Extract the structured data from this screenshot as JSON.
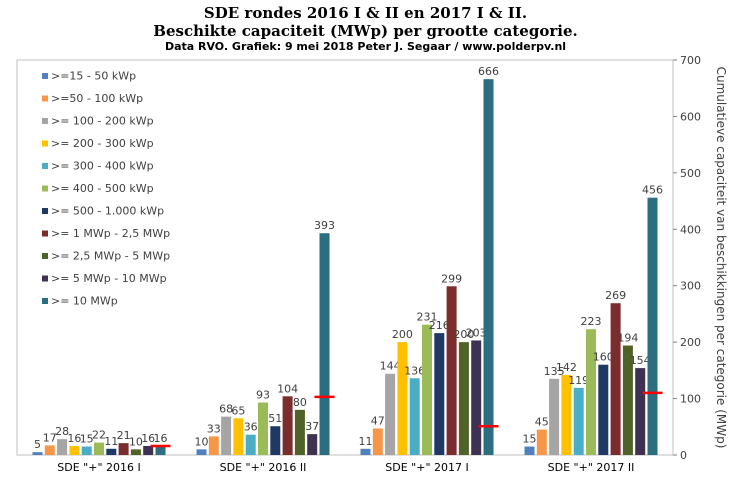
{
  "chart_data": {
    "type": "bar",
    "title": "SDE rondes 2016 I & II en 2017 I & II.",
    "subtitle": "Beschikte capaciteit (MWp) per grootte categorie.",
    "source": "Data RVO. Grafiek: 9 mei 2018 Peter J. Segaar / www.polderpv.nl",
    "categories": [
      "SDE \"+\" 2016 I",
      "SDE \"+\" 2016 II",
      "SDE \"+\" 2017 I",
      "SDE \"+\" 2017 II"
    ],
    "y2label": "Cumulatieve capaciteit van beschikkingen per categorie (MWp)",
    "y2lim": [
      0,
      700
    ],
    "y2ticks": [
      0,
      100,
      200,
      300,
      400,
      500,
      600,
      700
    ],
    "grid": false,
    "legend_position": "top-left",
    "series": [
      {
        "name": ">=15 - 50 kWp",
        "color": "#4f81bd",
        "values": [
          5,
          10,
          11,
          15
        ]
      },
      {
        "name": ">=50 - 100 kWp",
        "color": "#f79646",
        "values": [
          17,
          33,
          47,
          45
        ]
      },
      {
        "name": ">= 100 - 200 kWp",
        "color": "#a5a5a5",
        "values": [
          28,
          68,
          144,
          135
        ]
      },
      {
        "name": ">= 200 - 300 kWp",
        "color": "#ffc000",
        "values": [
          16,
          65,
          200,
          142
        ]
      },
      {
        "name": ">= 300 - 400 kWp",
        "color": "#4bacc6",
        "values": [
          15,
          36,
          136,
          119
        ]
      },
      {
        "name": ">= 400 - 500 kWp",
        "color": "#9bbb59",
        "values": [
          22,
          93,
          231,
          223
        ]
      },
      {
        "name": ">= 500 - 1.000 kWp",
        "color": "#1f3864",
        "values": [
          11,
          51,
          216,
          160
        ]
      },
      {
        "name": ">= 1 MWp - 2,5 MWp",
        "color": "#7b2c2c",
        "values": [
          21,
          104,
          299,
          269
        ]
      },
      {
        "name": ">= 2,5 MWp - 5 MWp",
        "color": "#4f6228",
        "values": [
          10,
          80,
          200,
          194
        ]
      },
      {
        "name": ">= 5 MWp - 10 MWp",
        "color": "#3f3151",
        "values": [
          16,
          37,
          203,
          154
        ]
      },
      {
        "name": ">= 10 MWp",
        "color": "#2a6e80",
        "values": [
          16,
          393,
          666,
          456
        ]
      }
    ],
    "markers": {
      "color": "#ff0000",
      "values": [
        16,
        103,
        51,
        110
      ]
    }
  }
}
